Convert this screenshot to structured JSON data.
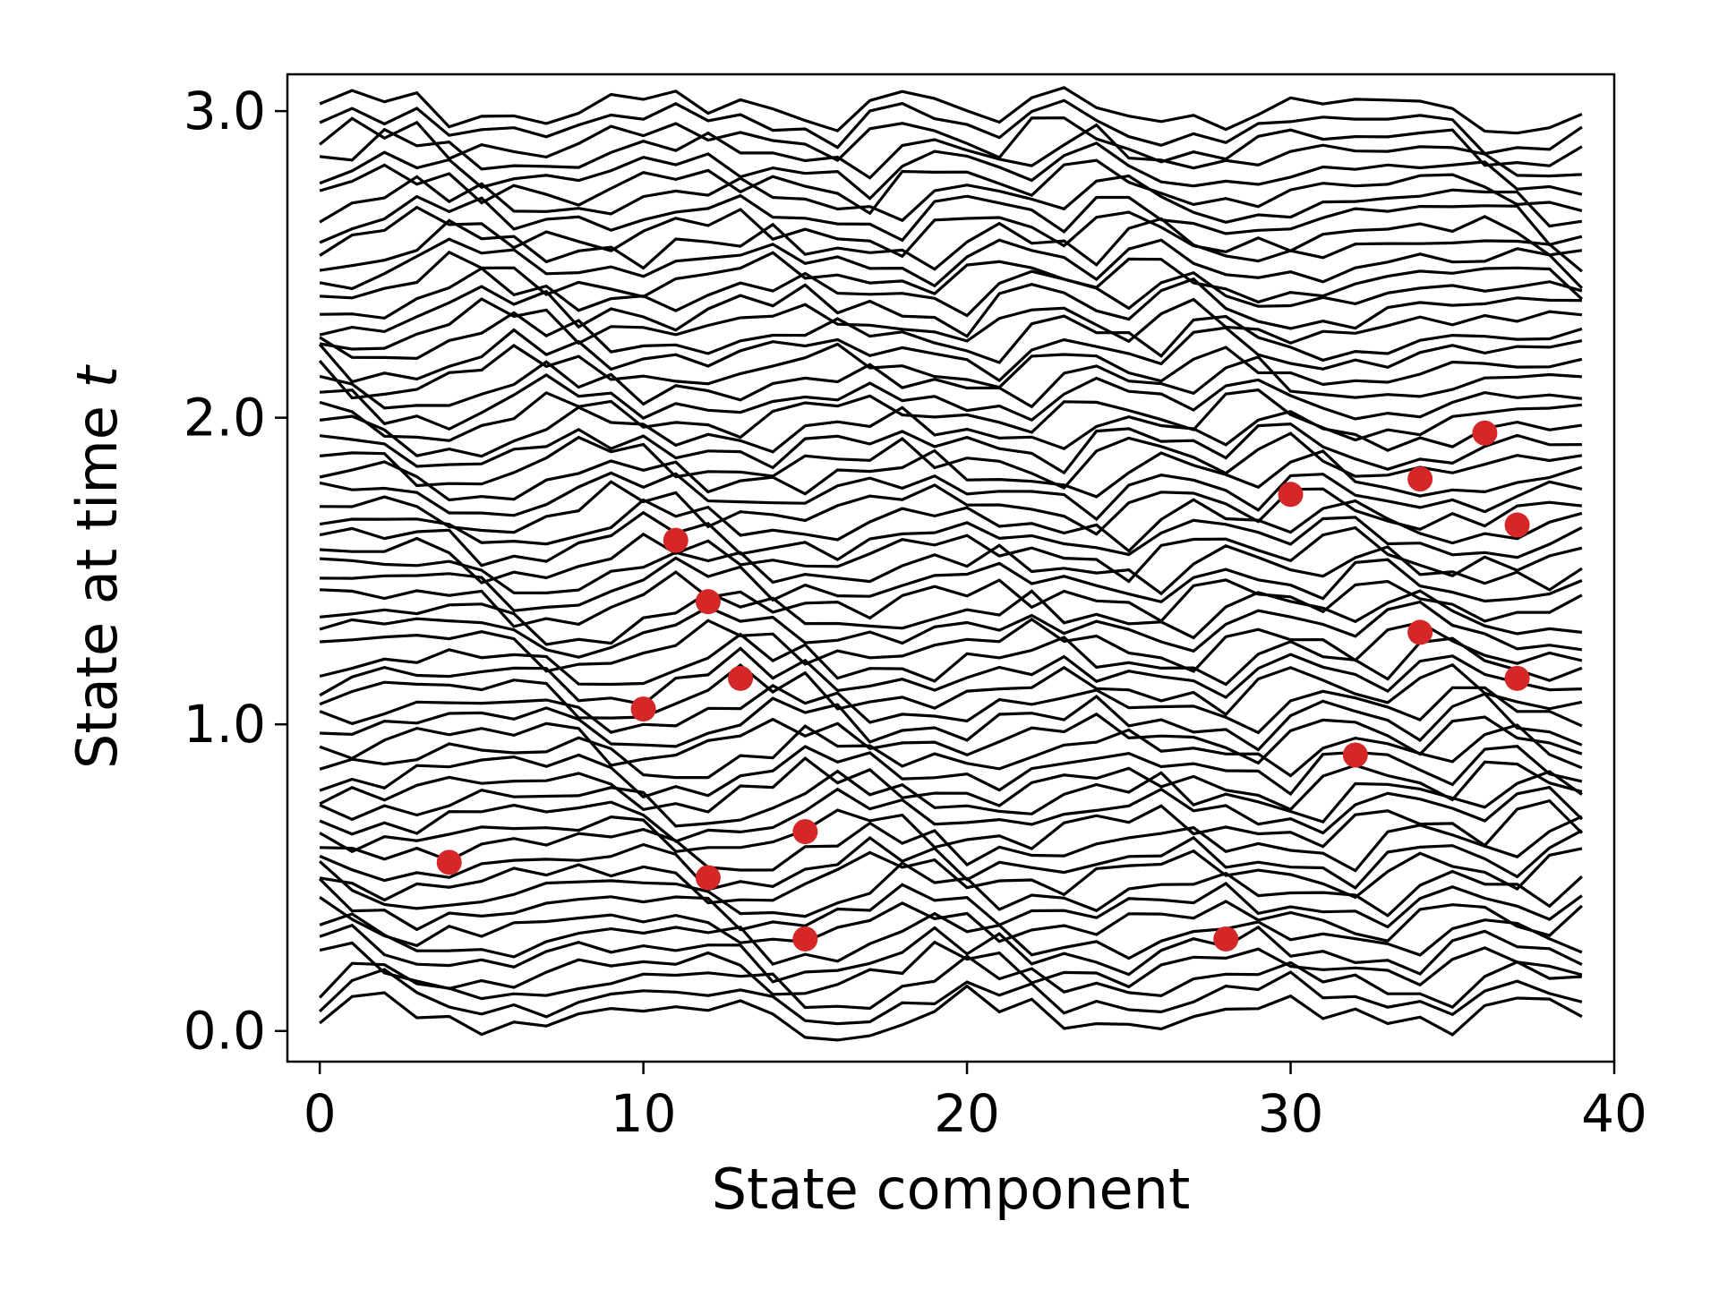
{
  "chart_data": {
    "type": "line",
    "xlabel": "State component",
    "ylabel_prefix": "State at time ",
    "ylabel_var": "t",
    "xlim": [
      -1,
      40
    ],
    "ylim": [
      -0.1,
      3.12
    ],
    "xticks": [
      0,
      10,
      20,
      30,
      40
    ],
    "xtick_labels": [
      "0",
      "10",
      "20",
      "30",
      "40"
    ],
    "yticks": [
      0.0,
      1.0,
      2.0,
      3.0
    ],
    "ytick_labels": [
      "0.0",
      "1.0",
      "2.0",
      "3.0"
    ],
    "grid": false,
    "legend": "none",
    "trace_color": "#000000",
    "marker_color": "#d62728",
    "components": 40,
    "trace_count": 60,
    "trace_offset_start": 0.05,
    "trace_offset_step": 0.05,
    "amplitude": 0.05,
    "observations": {
      "x": [
        4,
        12,
        15,
        15,
        28,
        10,
        13,
        12,
        11,
        32,
        34,
        37,
        30,
        34,
        37,
        36
      ],
      "y": [
        0.55,
        0.5,
        0.65,
        0.3,
        0.3,
        1.05,
        1.15,
        1.4,
        1.6,
        0.9,
        1.3,
        1.15,
        1.75,
        1.8,
        1.65,
        1.95
      ]
    }
  }
}
